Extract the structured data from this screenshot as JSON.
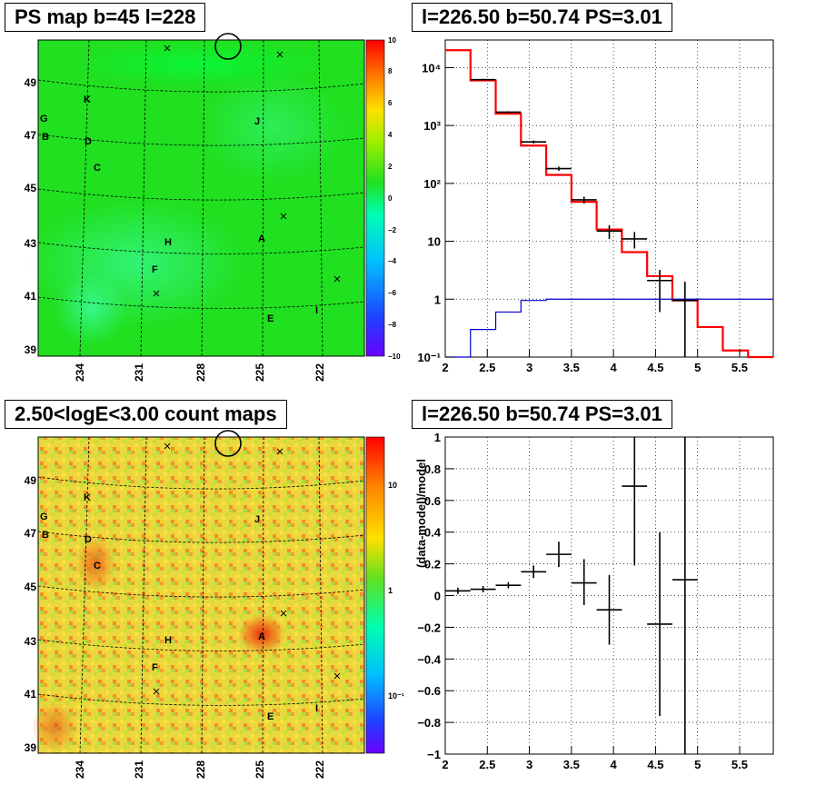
{
  "panels": {
    "ps_map_title": "PS map b=45 l=228",
    "count_map_title": "2.50<logE<3.00 count maps",
    "spectrum_title": "l=226.50 b=50.74 PS=3.01",
    "residual_title": "l=226.50 b=50.74 PS=3.01"
  },
  "maps": {
    "lat_labels": [
      "49",
      "47",
      "45",
      "43",
      "41",
      "39"
    ],
    "lon_labels": [
      "234",
      "231",
      "228",
      "225",
      "222"
    ],
    "sources": [
      {
        "label": "K"
      },
      {
        "label": "G"
      },
      {
        "label": "B"
      },
      {
        "label": "D"
      },
      {
        "label": "C"
      },
      {
        "label": "J"
      },
      {
        "label": "H"
      },
      {
        "label": "A"
      },
      {
        "label": "F"
      },
      {
        "label": "E"
      },
      {
        "label": "I"
      }
    ],
    "ps_colorbar_labels": [
      "10",
      "8",
      "6",
      "4",
      "2",
      "0",
      "−2",
      "−4",
      "−6",
      "−8",
      "−10"
    ],
    "count_colorbar_labels": [
      "10",
      "1",
      "10⁻¹"
    ],
    "colors": {
      "ps_background": "#20e020",
      "count_background": "#e8d840"
    }
  },
  "chart_data": [
    {
      "type": "line",
      "title": "l=226.50 b=50.74 PS=3.01",
      "xlabel": "",
      "ylabel": "",
      "xlim": [
        2,
        5.9
      ],
      "ylim": [
        0.1,
        30000
      ],
      "log_y": true,
      "grid": true,
      "x_ticks": [
        "2",
        "2.5",
        "3",
        "3.5",
        "4",
        "4.5",
        "5",
        "5.5"
      ],
      "y_ticks": [
        "10⁻¹",
        "1",
        "10",
        "10²",
        "10³",
        "10⁴"
      ],
      "series": [
        {
          "kind": "step",
          "color": "#ff0000",
          "edges": [
            2.0,
            2.3,
            2.6,
            2.9,
            3.2,
            3.5,
            3.8,
            4.1,
            4.4,
            4.7,
            5.0,
            5.3,
            5.6,
            5.9
          ],
          "values": [
            20000,
            6000,
            1600,
            450,
            140,
            48,
            16,
            6.5,
            2.5,
            0.95,
            0.33,
            0.13,
            0.1
          ]
        },
        {
          "kind": "step",
          "color": "#0000cc",
          "edges": [
            2.0,
            2.3,
            2.6,
            2.9,
            3.2,
            3.5,
            3.8,
            4.1,
            4.4,
            4.7,
            5.0,
            5.3,
            5.6,
            5.9
          ],
          "values": [
            0.1,
            0.3,
            0.6,
            0.95,
            1.0,
            1.0,
            1.0,
            1.0,
            1.0,
            1.0,
            1.0,
            1.0,
            1.0
          ]
        },
        {
          "kind": "errorbar",
          "color": "#000000",
          "x": [
            2.45,
            2.75,
            3.05,
            3.35,
            3.65,
            3.95,
            4.25,
            4.55,
            4.85
          ],
          "y": [
            6200,
            1700,
            520,
            180,
            52,
            15,
            11,
            2.1,
            0.95
          ],
          "ylo": [
            6000,
            1640,
            490,
            165,
            45,
            11,
            7.5,
            0.6,
            0.05
          ],
          "yhi": [
            6400,
            1760,
            550,
            195,
            59,
            19,
            14.5,
            3.2,
            2.0
          ]
        }
      ]
    },
    {
      "type": "scatter",
      "title": "l=226.50 b=50.74 PS=3.01",
      "xlabel": "",
      "ylabel": "(data-model)/model",
      "xlim": [
        2,
        5.9
      ],
      "ylim": [
        -1,
        1
      ],
      "grid": true,
      "x_ticks": [
        "2",
        "2.5",
        "3",
        "3.5",
        "4",
        "4.5",
        "5",
        "5.5"
      ],
      "y_ticks": [
        "−1",
        "−0.8",
        "−0.6",
        "−0.4",
        "−0.2",
        "0",
        "0.2",
        "0.4",
        "0.6",
        "0.8",
        "1"
      ],
      "series": [
        {
          "kind": "errorbar",
          "color": "#000000",
          "x": [
            2.15,
            2.45,
            2.75,
            3.05,
            3.35,
            3.65,
            3.95,
            4.25,
            4.55,
            4.85
          ],
          "y": [
            0.03,
            0.04,
            0.065,
            0.15,
            0.26,
            0.08,
            -0.09,
            0.69,
            -0.18,
            0.1
          ],
          "ylo": [
            0.01,
            0.02,
            0.045,
            0.11,
            0.18,
            -0.06,
            -0.31,
            0.19,
            -0.76,
            -1.0
          ],
          "yhi": [
            0.05,
            0.06,
            0.085,
            0.19,
            0.34,
            0.23,
            0.13,
            1.0,
            0.4,
            1.0
          ]
        }
      ]
    }
  ]
}
